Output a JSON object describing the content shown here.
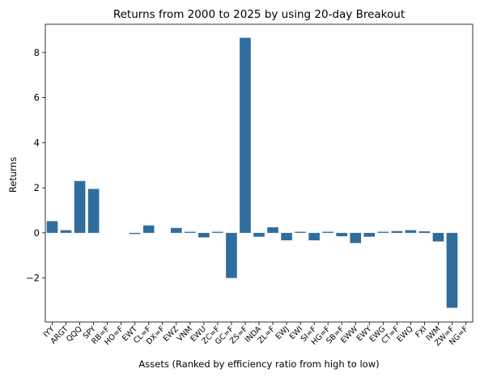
{
  "chart_data": {
    "type": "bar",
    "title": "Returns from 2000 to 2025 by using 20-day Breakout",
    "xlabel": "Assets (Ranked by efficiency ratio from high to low)",
    "ylabel": "Returns",
    "ylim": [
      -3.95,
      9.25
    ],
    "yticks": [
      -2,
      0,
      2,
      4,
      6,
      8
    ],
    "ytick_labels": [
      "−2",
      "0",
      "2",
      "4",
      "6",
      "8"
    ],
    "grid": false,
    "bar_color": "#2f6d9e",
    "categories": [
      "IYY",
      "ARGT",
      "QQQ",
      "SPY",
      "RB=F",
      "HO=F",
      "EWT",
      "CL=F",
      "DX=F",
      "EWZ",
      "VNM",
      "EWU",
      "ZC=F",
      "GC=F",
      "ZS=F",
      "INDA",
      "ZL=F",
      "EWJ",
      "EWI",
      "SI=F",
      "HG=F",
      "SB=F",
      "EWW",
      "EWY",
      "EWG",
      "CT=F",
      "EWQ",
      "FXI",
      "IWM",
      "ZW=F",
      "NG=F"
    ],
    "values": [
      0.52,
      0.12,
      2.3,
      1.95,
      0.0,
      0.0,
      -0.05,
      0.33,
      0.0,
      0.22,
      0.05,
      -0.2,
      0.05,
      -2.0,
      8.65,
      -0.17,
      0.25,
      -0.33,
      0.05,
      -0.33,
      0.05,
      -0.15,
      -0.45,
      -0.17,
      0.05,
      0.08,
      0.12,
      0.07,
      -0.38,
      -3.32,
      0.0
    ]
  }
}
